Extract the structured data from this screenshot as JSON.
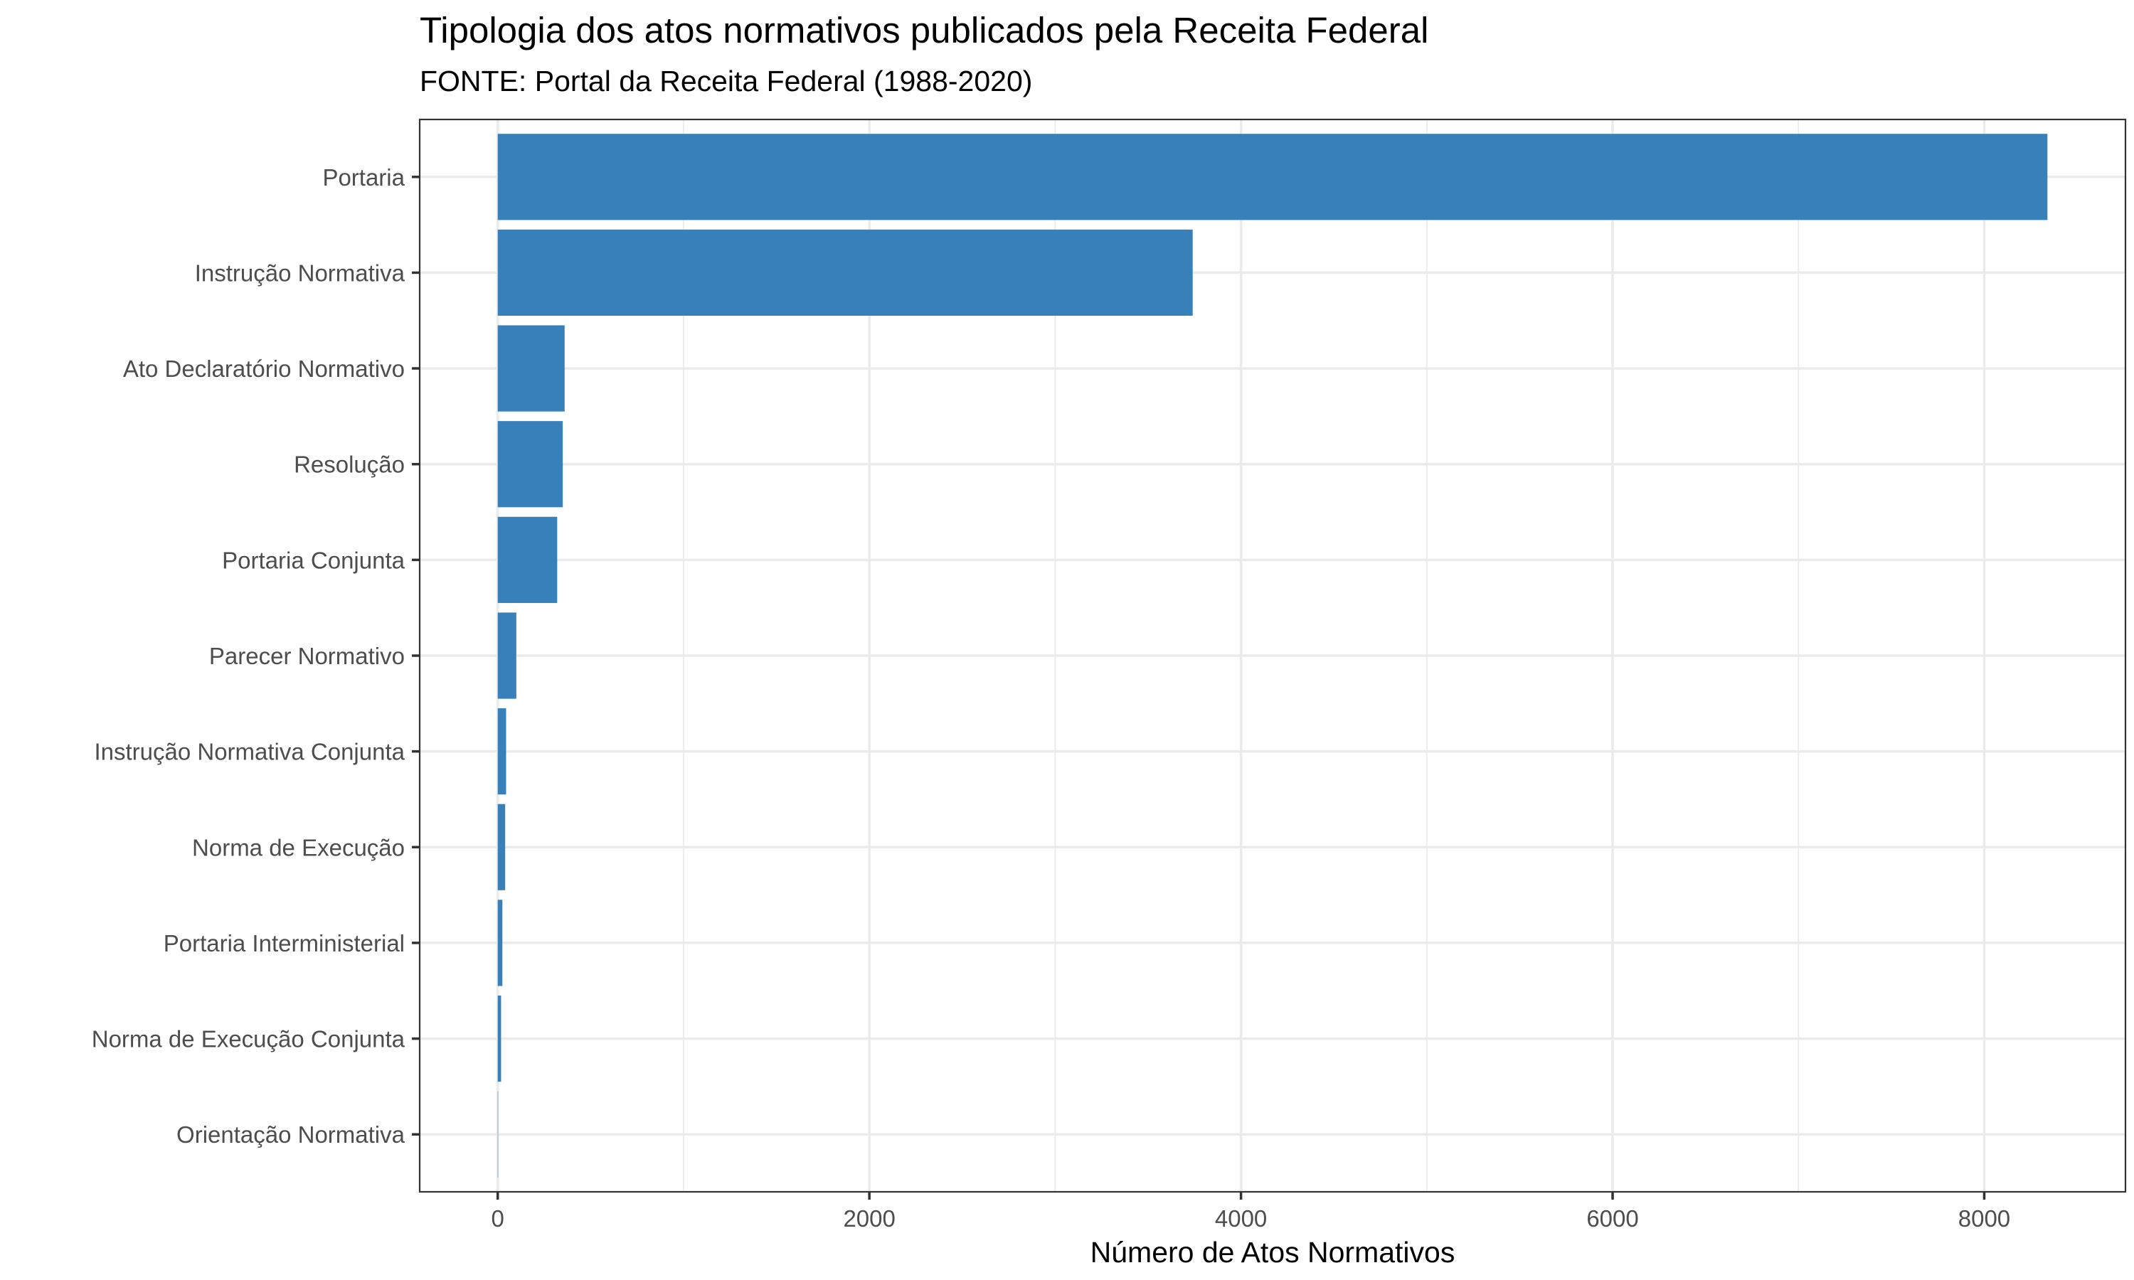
{
  "chart_data": {
    "type": "bar",
    "orientation": "horizontal",
    "title": "Tipologia dos atos normativos publicados pela Receita Federal",
    "subtitle": "FONTE: Portal da Receita Federal (1988-2020)",
    "xlabel": "Número de Atos Normativos",
    "ylabel": "",
    "xlim": [
      -420,
      8760
    ],
    "x_ticks": [
      0,
      2000,
      4000,
      6000,
      8000
    ],
    "x_tick_labels": [
      "0",
      "2000",
      "4000",
      "6000",
      "8000"
    ],
    "grid": true,
    "bar_color": "#3780BA",
    "categories": [
      "Portaria",
      "Instrução Normativa",
      "Ato Declaratório Normativo",
      "Resolução",
      "Portaria Conjunta",
      "Parecer Normativo",
      "Instrução Normativa Conjunta",
      "Norma de Execução",
      "Portaria Interministerial",
      "Norma de Execução Conjunta",
      "Orientação Normativa"
    ],
    "values": [
      8340,
      3740,
      360,
      350,
      320,
      100,
      45,
      40,
      25,
      18,
      2
    ]
  }
}
